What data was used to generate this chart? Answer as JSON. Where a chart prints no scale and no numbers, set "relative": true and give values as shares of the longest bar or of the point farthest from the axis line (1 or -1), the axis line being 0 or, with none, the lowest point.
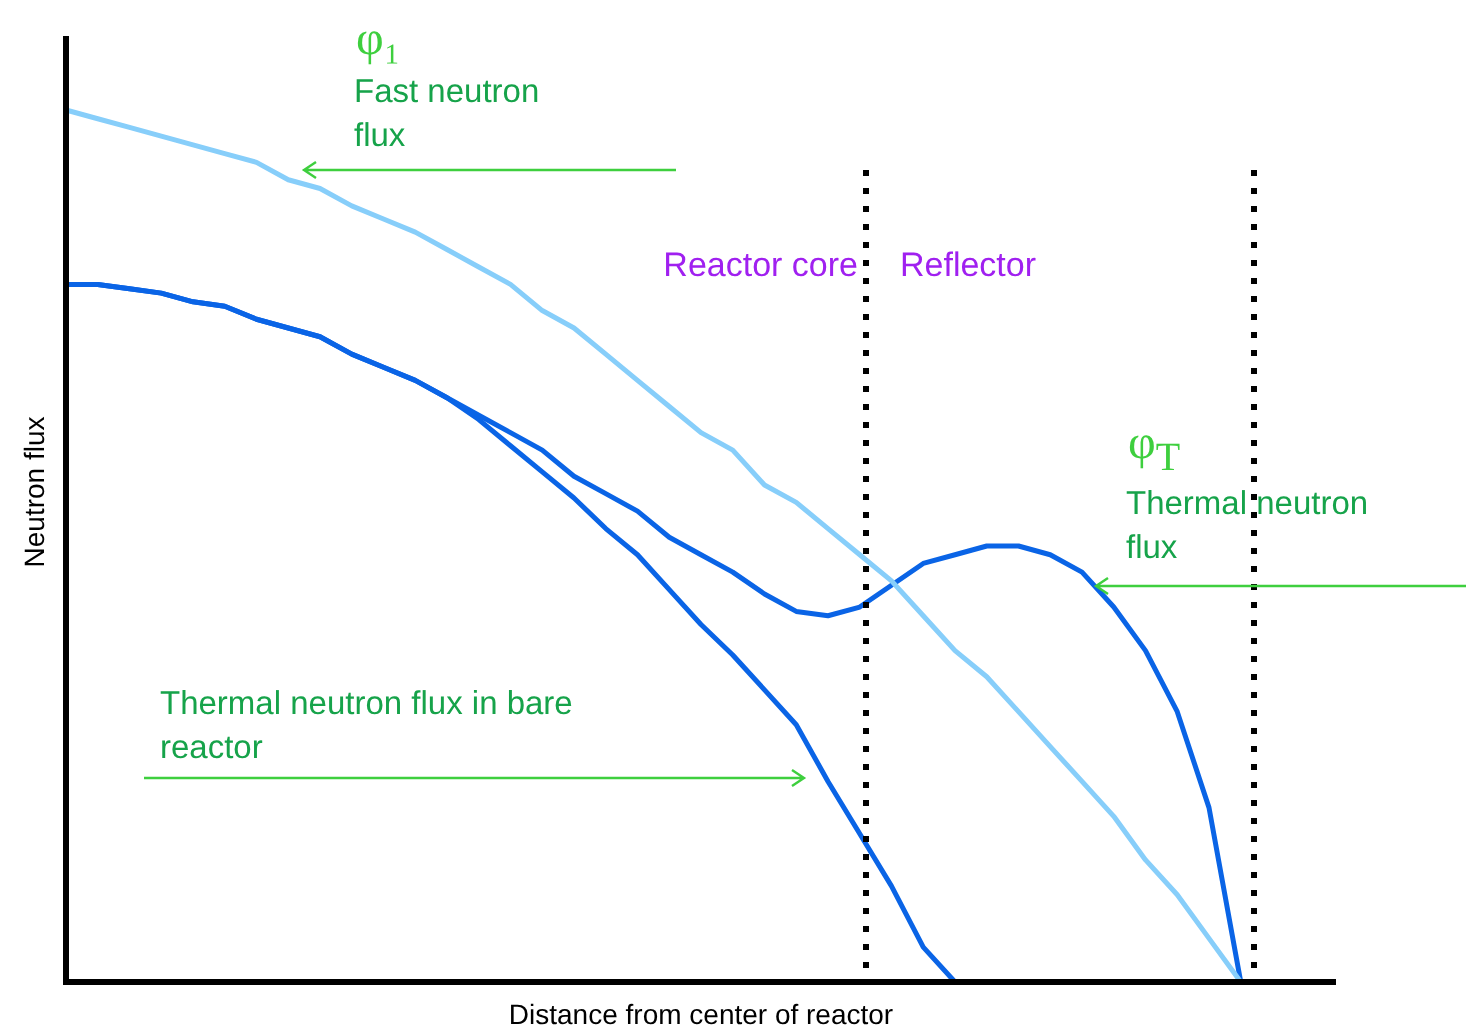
{
  "chart_data": {
    "type": "line",
    "relative": true,
    "xlabel": "Distance from center of reactor",
    "ylabel": "Neutron flux",
    "legend": false,
    "categories": [
      null,
      null,
      null,
      null,
      null,
      null,
      null,
      null,
      null,
      null,
      null,
      null,
      null,
      null,
      null,
      null,
      null,
      null,
      null,
      null,
      null,
      null,
      null,
      null,
      null,
      null,
      null,
      null,
      null,
      null,
      null,
      null,
      null,
      null,
      null,
      null,
      null,
      null,
      null,
      null,
      null
    ],
    "series": [
      {
        "color": "#87cefa",
        "values": [
          1.0,
          0.99,
          0.98,
          0.97,
          0.96,
          0.95,
          0.94,
          0.92,
          0.91,
          0.89,
          0.875,
          0.86,
          0.84,
          0.82,
          0.8,
          0.77,
          0.75,
          0.72,
          0.69,
          0.66,
          0.63,
          0.61,
          0.57,
          0.55,
          0.52,
          0.49,
          0.46,
          0.42,
          0.38,
          0.35,
          0.31,
          0.27,
          0.23,
          0.19,
          0.14,
          0.1,
          0.05,
          0,
          null,
          null,
          null
        ]
      },
      {
        "color": "#0a64e6",
        "values": [
          0.8,
          0.8,
          0.795,
          0.79,
          0.78,
          0.775,
          0.76,
          0.75,
          0.74,
          0.72,
          0.705,
          0.69,
          0.67,
          0.65,
          0.63,
          0.61,
          0.58,
          0.56,
          0.54,
          0.51,
          0.49,
          0.47,
          0.445,
          0.425,
          0.42,
          0.43,
          0.455,
          0.48,
          0.49,
          0.5,
          0.5,
          0.49,
          0.47,
          0.43,
          0.38,
          0.31,
          0.2,
          0,
          null,
          null,
          null
        ]
      },
      {
        "color": "#0a64e6",
        "values": [
          0.8,
          0.8,
          0.795,
          0.79,
          0.78,
          0.775,
          0.76,
          0.75,
          0.74,
          0.72,
          0.705,
          0.69,
          0.67,
          0.645,
          0.615,
          0.585,
          0.555,
          0.52,
          0.49,
          0.45,
          0.41,
          0.375,
          0.335,
          0.295,
          0.23,
          0.17,
          0.11,
          0.04,
          0,
          null,
          null,
          null,
          null,
          null,
          null,
          null,
          null,
          null,
          null,
          null,
          null
        ]
      }
    ],
    "annotations": [
      "φ₁",
      "Fast neutron flux",
      "Reactor core",
      "Reflector",
      "φ$_{T}$",
      "Thermal neutron flux",
      "Thermal neutron flux in bare reactor"
    ]
  }
}
